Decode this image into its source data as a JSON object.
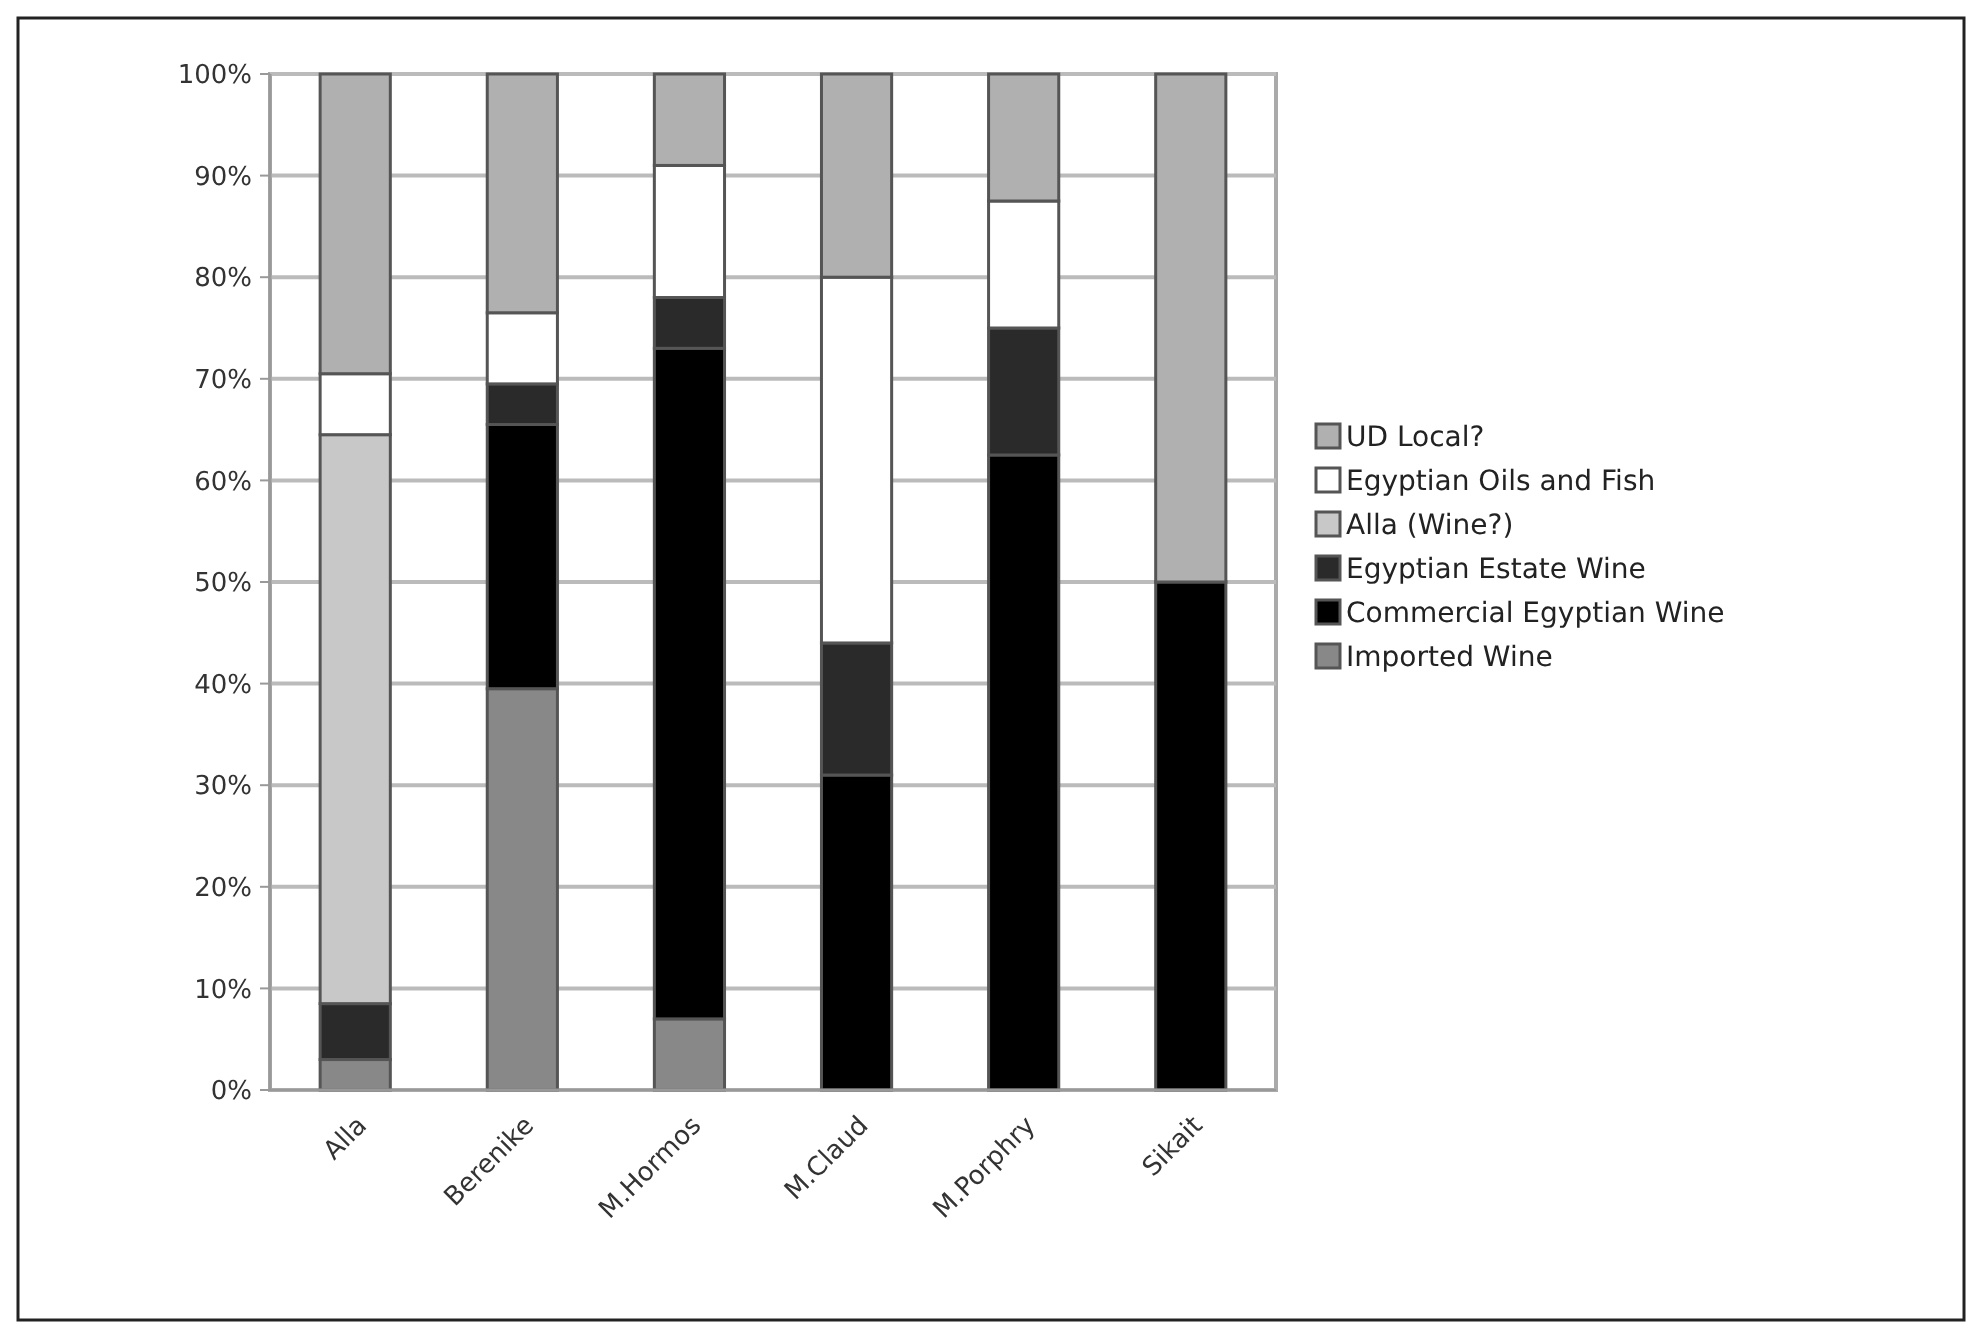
{
  "chart_data": {
    "type": "bar",
    "stacked": true,
    "categories": [
      "Alla",
      "Berenike",
      "M.Hormos",
      "M.Claud",
      "M.Porphry",
      "Sikait"
    ],
    "series": [
      {
        "name": "Imported Wine",
        "color": "#888888",
        "values": [
          3,
          39.5,
          7,
          0,
          0,
          0
        ]
      },
      {
        "name": "Commercial Egyptian Wine",
        "color": "#000000",
        "values": [
          0,
          26,
          66,
          31,
          62.5,
          50
        ]
      },
      {
        "name": "Egyptian Estate Wine",
        "color": "#2a2a2a",
        "values": [
          5.5,
          4,
          5,
          13,
          12.5,
          0
        ]
      },
      {
        "name": "Alla (Wine?)",
        "color": "#c8c8c8",
        "values": [
          56,
          0,
          0,
          0,
          0,
          0
        ]
      },
      {
        "name": "Egyptian Oils and Fish",
        "color": "#ffffff",
        "values": [
          6,
          7,
          13,
          36,
          12.5,
          0
        ]
      },
      {
        "name": "UD Local?",
        "color": "#b0b0b0",
        "values": [
          29.5,
          23.5,
          9,
          20,
          12.5,
          50
        ]
      }
    ],
    "ylim": [
      0,
      100
    ],
    "yticks": [
      {
        "value": 0,
        "label": "0%"
      },
      {
        "value": 10,
        "label": "10%"
      },
      {
        "value": 20,
        "label": "20%"
      },
      {
        "value": 30,
        "label": "30%"
      },
      {
        "value": 40,
        "label": "40%"
      },
      {
        "value": 50,
        "label": "50%"
      },
      {
        "value": 60,
        "label": "60%"
      },
      {
        "value": 70,
        "label": "70%"
      },
      {
        "value": 80,
        "label": "80%"
      },
      {
        "value": 90,
        "label": "90%"
      },
      {
        "value": 100,
        "label": "100%"
      }
    ],
    "grid": "y",
    "legend": "right"
  }
}
